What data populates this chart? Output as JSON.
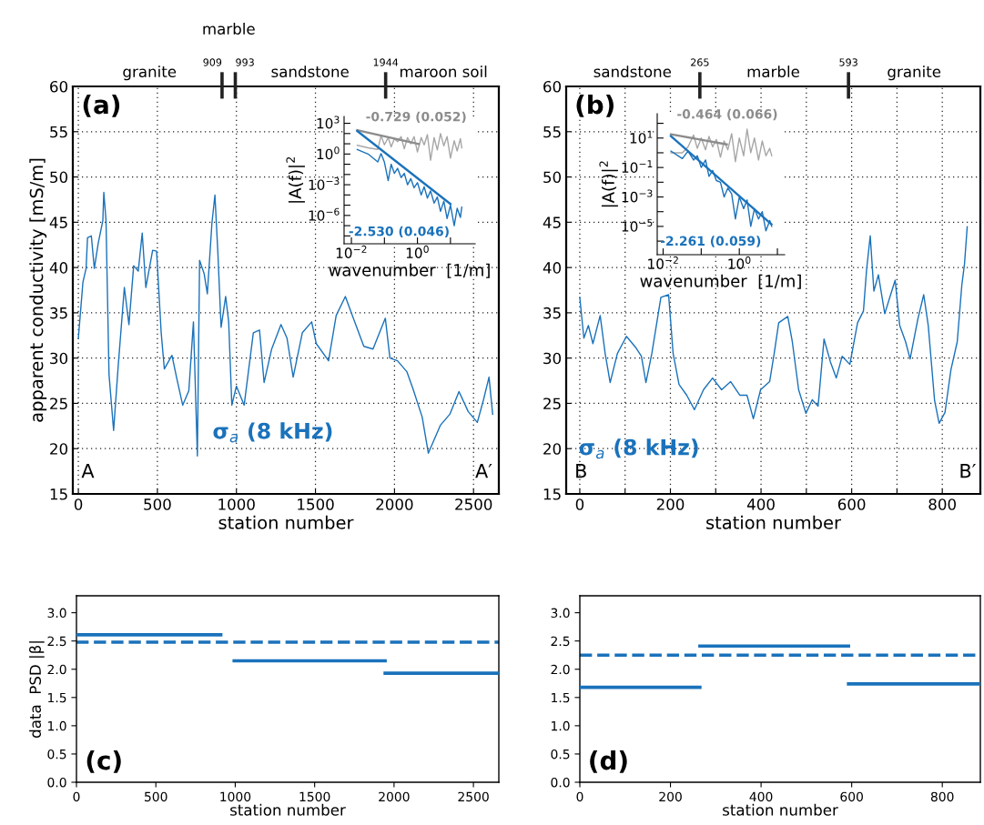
{
  "chart_data": [
    {
      "type": "line",
      "xlabel": "station number",
      "ylabel": "apparent conductivity [mS/m]",
      "xlim": [
        -35,
        2660
      ],
      "ylim": [
        15,
        60
      ],
      "xticks": [
        0,
        500,
        1000,
        1500,
        2000,
        2500
      ],
      "yticks": [
        15,
        20,
        25,
        30,
        35,
        40,
        45,
        50,
        55,
        60
      ],
      "grid": true,
      "ref_lines": [
        {
          "axis": "x",
          "value": 909,
          "label": "909",
          "color": "#222222"
        },
        {
          "axis": "x",
          "value": 993,
          "label": "993",
          "color": "#222222"
        },
        {
          "axis": "x",
          "value": 1944,
          "label": "1944",
          "color": "#222222"
        }
      ],
      "annotations": [
        "(a)",
        "A",
        "A′",
        "granite",
        "marble",
        "sandstone",
        "maroon soil"
      ],
      "series": [
        {
          "name": "σ$_{a}$ (8 kHz)",
          "color": "#1a72bb",
          "x": [
            0,
            16,
            29,
            49,
            58,
            82,
            101,
            126,
            155,
            161,
            175,
            194,
            223,
            252,
            291,
            320,
            350,
            379,
            404,
            427,
            470,
            495,
            524,
            544,
            592,
            621,
            660,
            699,
            728,
            753,
            767,
            796,
            816,
            845,
            864,
            883,
            903,
            932,
            951,
            971,
            1000,
            1049,
            1107,
            1146,
            1175,
            1223,
            1282,
            1320,
            1359,
            1417,
            1476,
            1505,
            1583,
            1631,
            1689,
            1748,
            1806,
            1864,
            1942,
            1971,
            2019,
            2078,
            2117,
            2175,
            2214,
            2291,
            2350,
            2408,
            2466,
            2524,
            2563,
            2598,
            2621
          ],
          "values": [
            32.2,
            35.6,
            38.4,
            39.9,
            43.3,
            43.5,
            39.9,
            42.7,
            45.2,
            48.3,
            45.2,
            28.2,
            22.0,
            29.1,
            37.8,
            33.7,
            40.2,
            39.6,
            43.8,
            37.8,
            41.9,
            41.8,
            32.8,
            28.8,
            30.3,
            27.9,
            24.8,
            26.4,
            34.0,
            19.2,
            40.8,
            39.3,
            37.1,
            44.9,
            48.0,
            41.5,
            33.4,
            36.8,
            34.0,
            24.8,
            26.9,
            24.8,
            32.8,
            33.1,
            27.3,
            31.0,
            33.7,
            32.2,
            27.9,
            32.8,
            34.0,
            31.6,
            29.7,
            34.7,
            36.8,
            34.0,
            31.3,
            31.0,
            34.4,
            30.0,
            29.7,
            28.5,
            26.6,
            23.5,
            19.5,
            22.6,
            23.8,
            26.3,
            24.1,
            22.9,
            25.4,
            27.9,
            23.8
          ]
        }
      ]
    },
    {
      "type": "line",
      "log": "xy",
      "xlabel": "wavenumber  [1/m]",
      "ylabel": "|A(f)|$^{2}$",
      "xlim": [
        0.006,
        56
      ],
      "ylim": [
        1.7e-09,
        4700
      ],
      "xticks": [
        {
          "value": 0.01,
          "label": "10$^{−2}$"
        },
        {
          "value": 0.1,
          "label": null
        },
        {
          "value": 1,
          "label": "10$^{0}$"
        },
        {
          "value": 10,
          "label": null
        }
      ],
      "yticks": [
        {
          "value": 1e-08,
          "label": null
        },
        {
          "value": 1e-07,
          "label": null
        },
        {
          "value": 1e-06,
          "label": "10$^{−6}$"
        },
        {
          "value": 1e-05,
          "label": null
        },
        {
          "value": 0.0001,
          "label": null
        },
        {
          "value": 0.001,
          "label": "10$^{−3}$"
        },
        {
          "value": 0.01,
          "label": null
        },
        {
          "value": 0.1,
          "label": null
        },
        {
          "value": 1,
          "label": "10$^{0}$"
        },
        {
          "value": 10,
          "label": null
        },
        {
          "value": 100,
          "label": null
        },
        {
          "value": 1000,
          "label": "10$^{3}$"
        }
      ],
      "x": [
        0.015,
        0.032,
        0.063,
        0.079,
        0.1,
        0.13,
        0.16,
        0.2,
        0.25,
        0.32,
        0.4,
        0.5,
        0.63,
        0.79,
        1,
        1.3,
        1.6,
        2,
        2.5,
        3.2,
        4,
        5,
        6.3,
        7.9,
        10,
        13,
        16,
        20,
        22
      ],
      "series": [
        {
          "color": "#a6a6a6",
          "values": [
            7.1,
            4,
            2.8,
            63,
            7.9,
            40,
            5,
            32,
            16,
            50,
            3.2,
            40,
            10,
            50,
            1.6,
            40,
            7.9,
            79,
            0.25,
            40,
            2.5,
            100,
            6.3,
            50,
            0.4,
            20,
            2,
            32,
            4
          ]
        },
        {
          "color": "#1a72bb",
          "values": [
            2.8,
            1,
            0.17,
            1.1,
            0.16,
            0.0025,
            0.1,
            0.013,
            0.04,
            0.005,
            0.013,
            0.001,
            0.004,
            0.0005,
            0.0016,
            0.0001,
            0.00063,
            5e-05,
            0.00025,
            1.6e-05,
            6.3e-05,
            2.5e-06,
            2.5e-05,
            5e-07,
            1e-05,
            1e-07,
            5e-06,
            6.3e-07,
            6.3e-06
          ]
        },
        {
          "name": "-0.729 (0.052)",
          "color": "#8c8c8c",
          "x": [
            0.015,
            1.1
          ],
          "values": [
            214,
            9.3
          ]
        },
        {
          "name": "-2.530 (0.046)",
          "color": "#1a72bb",
          "x": [
            0.015,
            10
          ],
          "values": [
            178,
            1.3e-05
          ]
        }
      ]
    },
    {
      "type": "line",
      "xlabel": "station number",
      "xlim": [
        -30,
        884
      ],
      "ylim": [
        15,
        60
      ],
      "xticks": [
        0,
        {
          "value": 100,
          "label": null
        },
        200,
        {
          "value": 300,
          "label": null
        },
        400,
        {
          "value": 500,
          "label": null
        },
        600,
        {
          "value": 700,
          "label": null
        },
        800
      ],
      "yticks": [
        15,
        20,
        25,
        30,
        35,
        40,
        45,
        50,
        55,
        60
      ],
      "grid": true,
      "ref_lines": [
        {
          "axis": "x",
          "value": 265,
          "label": "265",
          "color": "#222222"
        },
        {
          "axis": "x",
          "value": 593,
          "label": "593",
          "color": "#222222"
        }
      ],
      "annotations": [
        "(b)",
        "B",
        "B′",
        "sandstone",
        "marble",
        "granite"
      ],
      "series": [
        {
          "name": "σ$_{a}$ (8 kHz)",
          "color": "#1a72bb",
          "x": [
            0,
            9,
            19,
            29,
            45,
            56,
            67,
            83,
            103,
            123,
            136,
            146,
            159,
            179,
            196,
            206,
            219,
            236,
            253,
            273,
            293,
            313,
            333,
            353,
            369,
            383,
            399,
            419,
            429,
            439,
            459,
            469,
            483,
            499,
            513,
            526,
            539,
            553,
            566,
            579,
            596,
            613,
            626,
            633,
            641,
            649,
            659,
            673,
            686,
            696,
            706,
            719,
            729,
            746,
            759,
            769,
            783,
            793,
            806,
            819,
            833,
            843,
            849,
            855
          ],
          "values": [
            36.7,
            32.2,
            33.6,
            31.6,
            34.7,
            30.5,
            27.3,
            30.5,
            32.4,
            31.2,
            30.2,
            27.3,
            30.5,
            36.7,
            37.0,
            30.5,
            27.1,
            25.9,
            24.3,
            26.5,
            27.8,
            26.5,
            27.4,
            25.9,
            25.9,
            23.3,
            26.5,
            27.4,
            30.5,
            33.9,
            34.6,
            31.8,
            26.5,
            23.9,
            25.4,
            24.7,
            32.1,
            29.6,
            27.8,
            30.2,
            29.3,
            33.9,
            35.2,
            39.8,
            43.5,
            37.4,
            39.2,
            34.9,
            37.0,
            38.6,
            33.6,
            31.8,
            29.9,
            34.3,
            37.0,
            33.6,
            25.3,
            22.8,
            24.0,
            28.7,
            31.8,
            38.0,
            40.4,
            44.5
          ]
        }
      ]
    },
    {
      "type": "line",
      "log": "xy",
      "xlabel": "wavenumber  [1/m]",
      "ylabel": "|A(f)|$^{2}$",
      "xlim": [
        0.007,
        15.5
      ],
      "ylim": [
        1.2e-07,
        450
      ],
      "xticks": [
        {
          "value": 0.01,
          "label": "10$^{−2}$"
        },
        {
          "value": 0.1,
          "label": null
        },
        {
          "value": 1,
          "label": "10$^{0}$"
        },
        {
          "value": 10,
          "label": null
        }
      ],
      "yticks": [
        {
          "value": 1e-06,
          "label": null
        },
        {
          "value": 1e-05,
          "label": "10$^{−5}$"
        },
        {
          "value": 0.0001,
          "label": null
        },
        {
          "value": 0.001,
          "label": "10$^{−3}$"
        },
        {
          "value": 0.01,
          "label": null
        },
        {
          "value": 0.1,
          "label": "10$^{−1}$"
        },
        {
          "value": 1,
          "label": null
        },
        {
          "value": 10,
          "label": "10$^{1}$"
        },
        {
          "value": 100,
          "label": null
        }
      ],
      "x": [
        0.016,
        0.032,
        0.045,
        0.063,
        0.079,
        0.1,
        0.13,
        0.16,
        0.2,
        0.25,
        0.32,
        0.4,
        0.5,
        0.63,
        0.79,
        1,
        1.3,
        1.6,
        2,
        2.5,
        3.2,
        4,
        5,
        6.3,
        7.1
      ],
      "series": [
        {
          "color": "#a6a6a6",
          "values": [
            1,
            1,
            2.5,
            16,
            2,
            10,
            1.6,
            13,
            2.5,
            7.9,
            0.5,
            6.3,
            1.6,
            20,
            0.25,
            10,
            0.63,
            40,
            1,
            10,
            0.32,
            6.3,
            0.63,
            2,
            0.63
          ]
        },
        {
          "color": "#1a72bb",
          "values": [
            1.3,
            0.4,
            1.3,
            0.32,
            0.63,
            0.1,
            0.32,
            0.025,
            0.063,
            0.013,
            0.01,
            0.001,
            0.004,
            0.0016,
            3.2e-05,
            0.001,
            0.00016,
            0.00063,
            1e-05,
            0.00016,
            3.2e-05,
            0.0001,
            5e-06,
            2.5e-05,
            1e-05
          ]
        },
        {
          "name": "-0.464 (0.066)",
          "color": "#8c8c8c",
          "x": [
            0.016,
            0.47
          ],
          "values": [
            18,
            3.7
          ]
        },
        {
          "name": "-2.261 (0.059)",
          "color": "#1a72bb",
          "x": [
            0.016,
            7
          ],
          "values": [
            13.5,
            1.4e-05
          ]
        }
      ]
    },
    {
      "type": "line",
      "xlabel": "station number",
      "ylabel": "data  PSD |β|",
      "xlim": [
        0,
        2660
      ],
      "ylim": [
        0,
        3.3
      ],
      "xticks": [
        0,
        500,
        1000,
        1500,
        2000,
        2500
      ],
      "yticks": [
        {
          "value": 0,
          "label": "0.0"
        },
        {
          "value": 0.5,
          "label": "0.5"
        },
        {
          "value": 1,
          "label": "1.0"
        },
        {
          "value": 1.5,
          "label": "1.5"
        },
        {
          "value": 2,
          "label": "2.0"
        },
        {
          "value": 2.5,
          "label": "2.5"
        },
        {
          "value": 3,
          "label": "3.0"
        }
      ],
      "ref_lines": [
        {
          "axis": "y",
          "value": 2.48,
          "color": "#1a72bb",
          "line_style": "dashed"
        }
      ],
      "annotations": [
        "(c)"
      ],
      "series": [
        {
          "color": "#1a72bb",
          "x": [
            0,
            909
          ],
          "values": [
            2.61,
            2.61
          ]
        },
        {
          "color": "#1a72bb",
          "x": [
            993,
            1944
          ],
          "values": [
            2.15,
            2.15
          ]
        },
        {
          "color": "#1a72bb",
          "x": [
            1944,
            2660
          ],
          "values": [
            1.93,
            1.93
          ]
        }
      ]
    },
    {
      "type": "line",
      "xlabel": "station number",
      "xlim": [
        0,
        884
      ],
      "ylim": [
        0,
        3.3
      ],
      "xticks": [
        0,
        200,
        400,
        600,
        800
      ],
      "yticks": [
        {
          "value": 0,
          "label": "0.0"
        },
        {
          "value": 0.5,
          "label": "0.5"
        },
        {
          "value": 1,
          "label": "1.0"
        },
        {
          "value": 1.5,
          "label": "1.5"
        },
        {
          "value": 2,
          "label": "2.0"
        },
        {
          "value": 2.5,
          "label": "2.5"
        },
        {
          "value": 3,
          "label": "3.0"
        }
      ],
      "ref_lines": [
        {
          "axis": "y",
          "value": 2.25,
          "color": "#1a72bb",
          "line_style": "dashed"
        }
      ],
      "annotations": [
        "(d)"
      ],
      "series": [
        {
          "color": "#1a72bb",
          "x": [
            0,
            265
          ],
          "values": [
            1.68,
            1.68
          ]
        },
        {
          "color": "#1a72bb",
          "x": [
            265,
            593
          ],
          "values": [
            2.41,
            2.41
          ]
        },
        {
          "color": "#1a72bb",
          "x": [
            593,
            884
          ],
          "values": [
            1.74,
            1.74
          ]
        }
      ]
    }
  ]
}
